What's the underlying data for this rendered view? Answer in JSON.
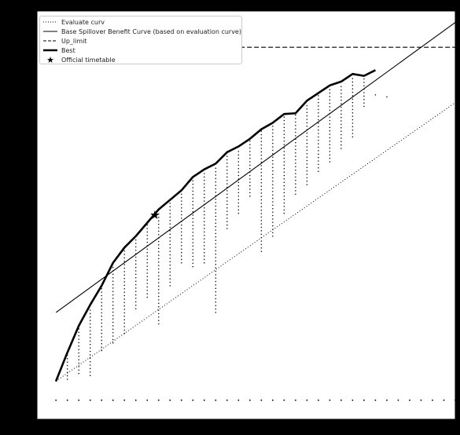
{
  "chart_data": {
    "type": "line",
    "title": "",
    "xlabel": "",
    "ylabel": "",
    "xlim": [
      0,
      11
    ],
    "ylim": [
      -1.5,
      9.2
    ],
    "grid": false,
    "legend_placement": "top-left",
    "background_color": "#000000",
    "plot_area_color": "#ffffff",
    "line_color": "#000000",
    "series": [
      {
        "name": "Evaluate curv",
        "style": "dotted",
        "x": [
          0.5,
          11.0
        ],
        "y": [
          -0.5,
          6.8
        ]
      },
      {
        "name": "Base Spillover Benefit Curve (based on evaluation curve)",
        "style": "solid",
        "x": [
          0.5,
          11.0
        ],
        "y": [
          1.3,
          8.9
        ]
      },
      {
        "name": "Up_limit",
        "style": "dashed",
        "x": [
          0.5,
          11.0
        ],
        "y": [
          8.25,
          8.25
        ]
      },
      {
        "name": "Best",
        "style": "thick",
        "x": [
          0.5,
          0.8,
          1.1,
          1.4,
          1.7,
          2.0,
          2.3,
          2.6,
          2.9,
          3.2,
          3.5,
          3.8,
          4.1,
          4.4,
          4.7,
          5.0,
          5.3,
          5.6,
          5.9,
          6.2,
          6.5,
          6.8,
          7.1,
          7.4,
          7.7,
          8.0,
          8.3,
          8.6,
          8.9
        ],
        "y": [
          -0.5,
          0.25,
          0.95,
          1.5,
          2.0,
          2.6,
          3.0,
          3.3,
          3.65,
          4.0,
          4.25,
          4.5,
          4.85,
          5.05,
          5.2,
          5.5,
          5.65,
          5.85,
          6.1,
          6.27,
          6.5,
          6.52,
          6.85,
          7.05,
          7.25,
          7.35,
          7.55,
          7.5,
          7.65
        ]
      }
    ],
    "marker": {
      "name": "Official timetable",
      "symbol": "star",
      "x": [
        3.1
      ],
      "y": [
        3.85
      ]
    },
    "scatter_columns": [
      {
        "x": 0.5,
        "lo": -0.5,
        "hi": -0.5
      },
      {
        "x": 0.8,
        "lo": -0.45,
        "hi": 0.25
      },
      {
        "x": 1.1,
        "lo": -0.3,
        "hi": 0.9
      },
      {
        "x": 1.4,
        "lo": -0.35,
        "hi": 1.4
      },
      {
        "x": 1.7,
        "lo": 0.3,
        "hi": 1.95
      },
      {
        "x": 2.0,
        "lo": 0.5,
        "hi": 2.55
      },
      {
        "x": 2.3,
        "lo": 0.75,
        "hi": 2.95
      },
      {
        "x": 2.6,
        "lo": 1.4,
        "hi": 3.25
      },
      {
        "x": 2.9,
        "lo": 1.7,
        "hi": 3.6
      },
      {
        "x": 3.2,
        "lo": 1.0,
        "hi": 3.95
      },
      {
        "x": 3.5,
        "lo": 2.0,
        "hi": 4.2
      },
      {
        "x": 3.8,
        "lo": 2.6,
        "hi": 4.45
      },
      {
        "x": 4.1,
        "lo": 2.5,
        "hi": 4.8
      },
      {
        "x": 4.4,
        "lo": 2.6,
        "hi": 5.0
      },
      {
        "x": 4.7,
        "lo": 1.3,
        "hi": 5.15
      },
      {
        "x": 5.0,
        "lo": 3.5,
        "hi": 5.45
      },
      {
        "x": 5.3,
        "lo": 3.9,
        "hi": 5.6
      },
      {
        "x": 5.6,
        "lo": 4.35,
        "hi": 5.8
      },
      {
        "x": 5.9,
        "lo": 2.9,
        "hi": 6.05
      },
      {
        "x": 6.2,
        "lo": 3.3,
        "hi": 6.22
      },
      {
        "x": 6.5,
        "lo": 3.9,
        "hi": 6.45
      },
      {
        "x": 6.8,
        "lo": 4.4,
        "hi": 6.47
      },
      {
        "x": 7.1,
        "lo": 4.65,
        "hi": 6.8
      },
      {
        "x": 7.4,
        "lo": 5.0,
        "hi": 7.0
      },
      {
        "x": 7.7,
        "lo": 5.25,
        "hi": 7.2
      },
      {
        "x": 8.0,
        "lo": 5.6,
        "hi": 7.3
      },
      {
        "x": 8.3,
        "lo": 5.9,
        "hi": 7.5
      },
      {
        "x": 8.6,
        "lo": 6.7,
        "hi": 7.45
      },
      {
        "x": 8.9,
        "lo": 7.0,
        "hi": 7.0
      },
      {
        "x": 9.2,
        "lo": 6.95,
        "hi": 6.95
      }
    ],
    "baseline_dots": {
      "y": -1.0,
      "x": [
        0.5,
        0.8,
        1.1,
        1.4,
        1.7,
        2.0,
        2.3,
        2.6,
        2.9,
        3.2,
        3.5,
        3.8,
        4.1,
        4.4,
        4.7,
        5.0,
        5.3,
        5.6,
        5.9,
        6.2,
        6.5,
        6.8,
        7.1,
        7.4,
        7.7,
        8.0,
        8.3,
        8.6,
        8.9,
        9.2,
        9.5,
        9.8,
        10.1,
        10.4,
        10.7,
        11.0
      ]
    }
  }
}
